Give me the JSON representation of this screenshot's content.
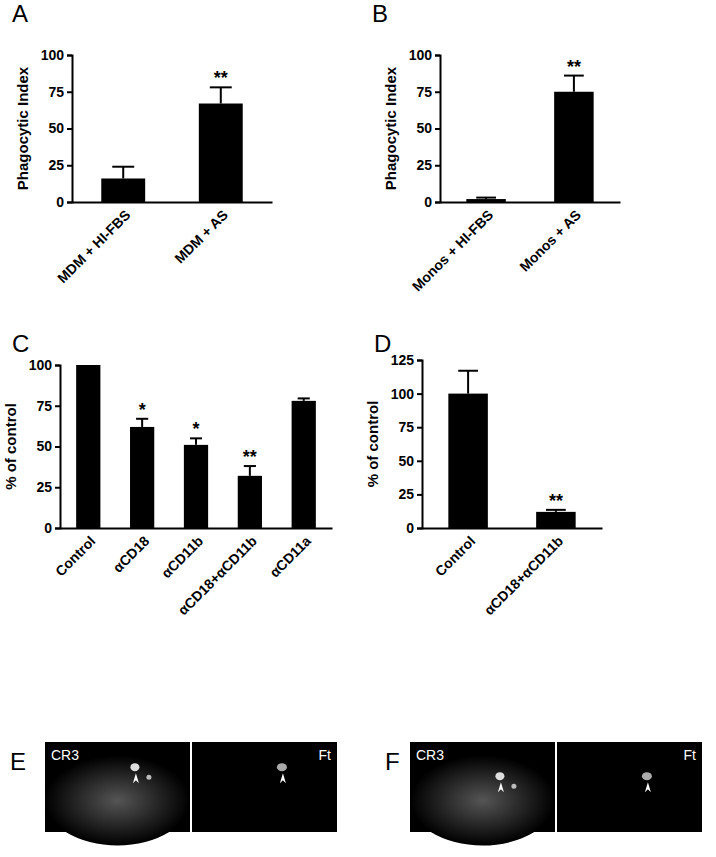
{
  "chart_data": [
    {
      "type": "bar",
      "title": "A",
      "y_label": "Phagocytic Index",
      "categories": [
        "MDM + HI-FBS",
        "MDM + AS"
      ],
      "values": [
        16,
        67
      ],
      "errors": [
        8,
        11
      ],
      "color": "#000000",
      "ylim": [
        0,
        100
      ],
      "yticks": [
        0,
        25,
        50,
        75,
        100
      ],
      "annotations": [
        {
          "x": "MDM + AS",
          "text": "**"
        }
      ]
    },
    {
      "type": "bar",
      "title": "B",
      "y_label": "Phagocytic Index",
      "categories": [
        "Monos + HI-FBS",
        "Monos + AS"
      ],
      "values": [
        2,
        75
      ],
      "errors": [
        1,
        11
      ],
      "color": "#000000",
      "ylim": [
        0,
        100
      ],
      "yticks": [
        0,
        25,
        50,
        75,
        100
      ],
      "annotations": [
        {
          "x": "Monos + AS",
          "text": "**"
        }
      ]
    },
    {
      "type": "bar",
      "title": "C",
      "y_label": "% of control",
      "categories": [
        "Control",
        "αCD18",
        "αCD11b",
        "αCD18+αCD11b",
        "αCD11a"
      ],
      "values": [
        100,
        62,
        51,
        32,
        78
      ],
      "errors": [
        0.5,
        5,
        4,
        6,
        1.5
      ],
      "color": "#000000",
      "ylim": [
        0,
        100
      ],
      "yticks": [
        0,
        25,
        50,
        75,
        100
      ],
      "annotations": [
        {
          "x": "αCD18",
          "text": "*"
        },
        {
          "x": "αCD11b",
          "text": "*"
        },
        {
          "x": "αCD18+αCD11b",
          "text": "**"
        }
      ]
    },
    {
      "type": "bar",
      "title": "D",
      "y_label": "% of control",
      "categories": [
        "Control",
        "αCD18+αCD11b"
      ],
      "values": [
        100,
        12
      ],
      "errors": [
        17,
        1.5
      ],
      "color": "#000000",
      "ylim": [
        0,
        125
      ],
      "yticks": [
        0,
        25,
        50,
        75,
        100,
        125
      ],
      "annotations": [
        {
          "x": "αCD18+αCD11b",
          "text": "**"
        }
      ]
    }
  ],
  "images": [
    {
      "title": "E",
      "labels": [
        "CR3",
        "Ft"
      ]
    },
    {
      "title": "F",
      "labels": [
        "CR3",
        "Ft"
      ]
    }
  ]
}
